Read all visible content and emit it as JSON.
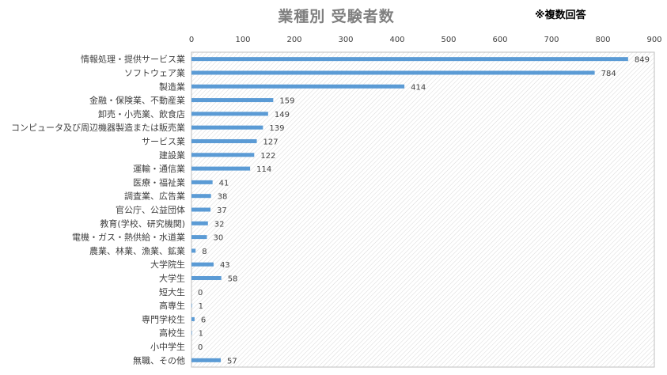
{
  "chart_data": {
    "type": "bar",
    "orientation": "horizontal",
    "title": "業種別 受験者数",
    "note": "※複数回答",
    "xlim": [
      0,
      900
    ],
    "xticks": [
      0,
      100,
      200,
      300,
      400,
      500,
      600,
      700,
      800,
      900
    ],
    "x_axis_position": "top",
    "grid": false,
    "bar_color": "#5b9bd5",
    "categories": [
      "情報処理・提供サービス業",
      "ソフトウェア業",
      "製造業",
      "金融・保険業、不動産業",
      "卸売・小売業、飲食店",
      "コンピュータ及び周辺機器製造または販売業",
      "サービス業",
      "建設業",
      "運輸・通信業",
      "医療・福祉業",
      "調査業、広告業",
      "官公庁、公益団体",
      "教育(学校、研究機関)",
      "電機・ガス・熱供給・水道業",
      "農業、林業、漁業、鉱業",
      "大学院生",
      "大学生",
      "短大生",
      "高専生",
      "専門学校生",
      "高校生",
      "小中学生",
      "無職、その他"
    ],
    "values": [
      849,
      784,
      414,
      159,
      149,
      139,
      127,
      122,
      114,
      41,
      38,
      37,
      32,
      30,
      8,
      43,
      58,
      0,
      1,
      6,
      1,
      0,
      57
    ]
  }
}
